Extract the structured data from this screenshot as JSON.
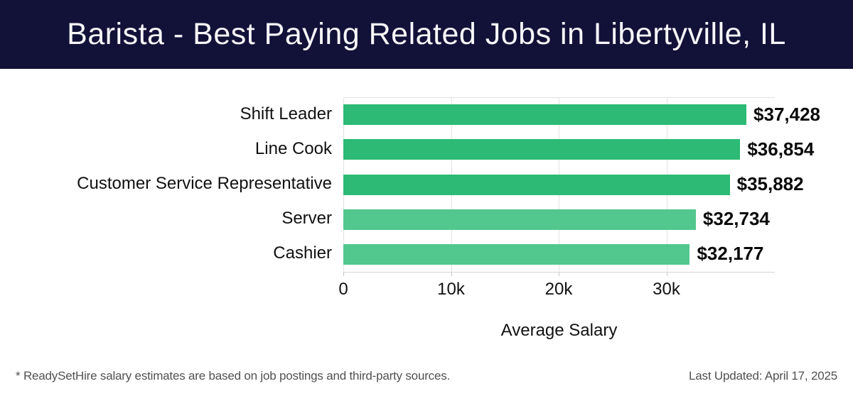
{
  "header": {
    "title": "Barista - Best Paying Related Jobs in Libertyville, IL"
  },
  "chart_data": {
    "type": "bar",
    "orientation": "horizontal",
    "title": "Barista - Best Paying Related Jobs in Libertyville, IL",
    "categories": [
      "Shift Leader",
      "Line Cook",
      "Customer Service Representative",
      "Server",
      "Cashier"
    ],
    "values": [
      37428,
      36854,
      35882,
      32734,
      32177
    ],
    "value_labels": [
      "$37,428",
      "$36,854",
      "$35,882",
      "$32,734",
      "$32,177"
    ],
    "bar_colors": [
      "#2cba74",
      "#2cba74",
      "#2cba74",
      "#52c78e",
      "#52c78e"
    ],
    "xlabel": "Average Salary",
    "ylabel": "",
    "xlim": [
      0,
      40066
    ],
    "x_ticks": [
      {
        "value": 0,
        "label": "0"
      },
      {
        "value": 10000,
        "label": "10k"
      },
      {
        "value": 20000,
        "label": "20k"
      },
      {
        "value": 30000,
        "label": "30k"
      }
    ],
    "grid": true,
    "legend": false
  },
  "footer": {
    "disclaimer": "* ReadySetHire salary estimates are based on job postings and third-party sources.",
    "last_updated": "Last Updated: April 17, 2025"
  },
  "colors": {
    "header_bg": "#121138",
    "bar_green_dark": "#2cba74",
    "bar_green_light": "#52c78e",
    "gridline": "#e3e3e3",
    "axis": "#d4d4d4",
    "text": "#111111",
    "muted_text": "#515151"
  }
}
